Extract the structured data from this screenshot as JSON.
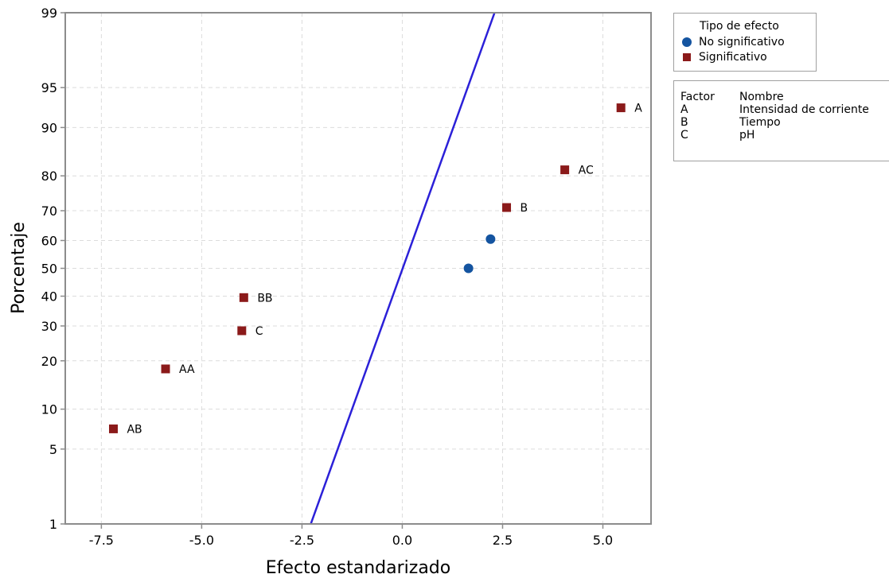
{
  "chart_data": {
    "type": "scatter",
    "xlabel": "Efecto estandarizado",
    "ylabel": "Porcentaje",
    "xlim": [
      -8.4,
      6.2
    ],
    "ylim": [
      1,
      99
    ],
    "y_scale": "normal-probability",
    "x_ticks": [
      "-7.5",
      "-5.0",
      "-2.5",
      "0.0",
      "2.5",
      "5.0"
    ],
    "x_tick_values": [
      -7.5,
      -5.0,
      -2.5,
      0.0,
      2.5,
      5.0
    ],
    "y_ticks": [
      "1",
      "5",
      "10",
      "20",
      "30",
      "40",
      "50",
      "60",
      "70",
      "80",
      "90",
      "95",
      "99"
    ],
    "y_tick_values": [
      1,
      5,
      10,
      20,
      30,
      40,
      50,
      60,
      70,
      80,
      90,
      95,
      99
    ],
    "grid": true,
    "reference_line": {
      "color": "#2b20d8",
      "points": [
        [
          -2.28,
          1
        ],
        [
          2.3,
          99
        ]
      ]
    },
    "series": [
      {
        "name": "No significativo",
        "marker": "circle",
        "color": "#1454a0",
        "points": [
          {
            "x": 1.65,
            "y": 50,
            "label": ""
          },
          {
            "x": 2.2,
            "y": 60.5,
            "label": ""
          }
        ]
      },
      {
        "name": "Significativo",
        "marker": "square",
        "color": "#8b1a1a",
        "points": [
          {
            "x": -7.2,
            "y": 7.2,
            "label": "AB"
          },
          {
            "x": -5.9,
            "y": 18,
            "label": "AA"
          },
          {
            "x": -4.0,
            "y": 28.5,
            "label": "C"
          },
          {
            "x": -3.95,
            "y": 39.5,
            "label": "BB"
          },
          {
            "x": 2.6,
            "y": 71,
            "label": "B"
          },
          {
            "x": 4.05,
            "y": 81.5,
            "label": "AC"
          },
          {
            "x": 5.45,
            "y": 92.8,
            "label": "A"
          }
        ]
      }
    ],
    "legend": {
      "title": "Tipo de efecto",
      "placement": "right",
      "entries": [
        "No significativo",
        "Significativo"
      ]
    },
    "factor_table": {
      "headers": [
        "Factor",
        "Nombre"
      ],
      "rows": [
        [
          "A",
          "Intensidad de corriente"
        ],
        [
          "B",
          "Tiempo"
        ],
        [
          "C",
          "pH"
        ]
      ]
    }
  }
}
